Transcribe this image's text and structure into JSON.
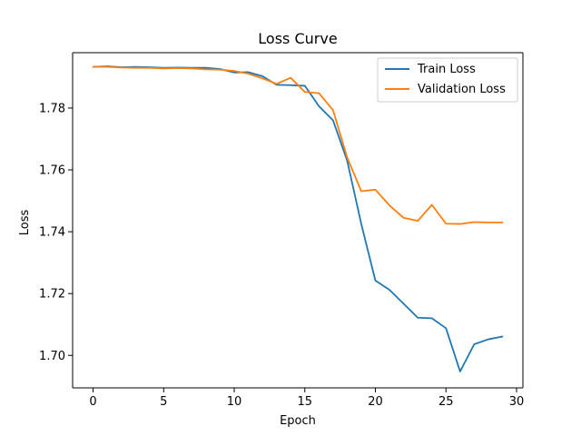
{
  "chart_data": {
    "type": "line",
    "title": "Loss Curve",
    "xlabel": "Epoch",
    "ylabel": "Loss",
    "xlim": [
      -1.45,
      30.45
    ],
    "ylim": [
      1.6895,
      1.7979
    ],
    "x_ticks": [
      0,
      5,
      10,
      15,
      20,
      25,
      30
    ],
    "y_ticks": [
      1.7,
      1.72,
      1.74,
      1.76,
      1.78
    ],
    "y_tick_labels": [
      "1.70",
      "1.72",
      "1.74",
      "1.76",
      "1.78"
    ],
    "legend_position": "top-right",
    "x": [
      0,
      1,
      2,
      3,
      4,
      5,
      6,
      7,
      8,
      9,
      10,
      11,
      12,
      13,
      14,
      15,
      16,
      17,
      18,
      19,
      20,
      21,
      22,
      23,
      24,
      25,
      26,
      27,
      28,
      29
    ],
    "series": [
      {
        "name": "Train Loss",
        "color": "#1f77b4",
        "values": [
          1.7933,
          1.7935,
          1.7932,
          1.7933,
          1.7932,
          1.793,
          1.7931,
          1.793,
          1.793,
          1.7926,
          1.7915,
          1.7916,
          1.7903,
          1.7875,
          1.7874,
          1.7872,
          1.7806,
          1.776,
          1.763,
          1.7425,
          1.7242,
          1.7212,
          1.7167,
          1.7122,
          1.712,
          1.7088,
          1.6948,
          1.7036,
          1.7052,
          1.7061
        ]
      },
      {
        "name": "Validation Loss",
        "color": "#ff7f0e",
        "values": [
          1.7933,
          1.7933,
          1.7931,
          1.793,
          1.793,
          1.7928,
          1.7929,
          1.7928,
          1.7925,
          1.7924,
          1.792,
          1.7911,
          1.7896,
          1.7878,
          1.7898,
          1.7852,
          1.7848,
          1.7793,
          1.764,
          1.7531,
          1.7536,
          1.7485,
          1.7445,
          1.7435,
          1.7487,
          1.7426,
          1.7425,
          1.7431,
          1.743,
          1.743
        ]
      }
    ]
  }
}
